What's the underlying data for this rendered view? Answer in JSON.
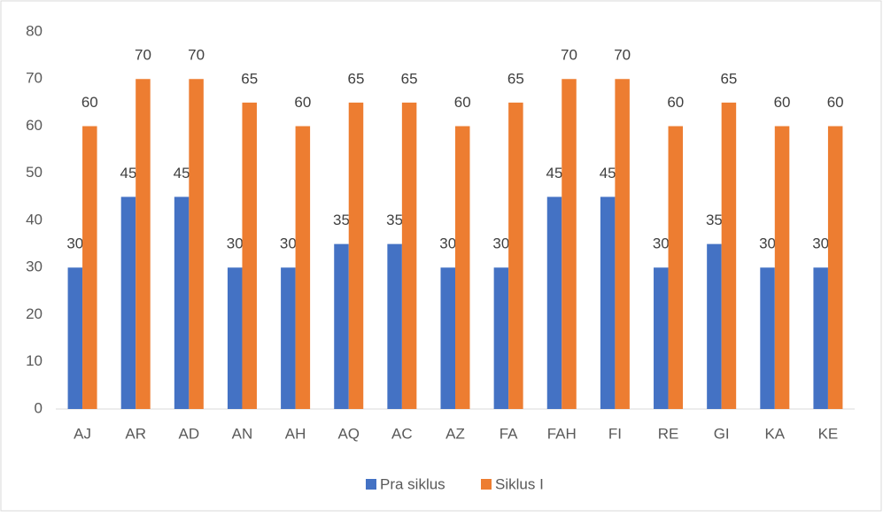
{
  "chart_data": {
    "type": "bar",
    "categories": [
      "AJ",
      "AR",
      "AD",
      "AN",
      "AH",
      "AQ",
      "AC",
      "AZ",
      "FA",
      "FAH",
      "FI",
      "RE",
      "GI",
      "KA",
      "KE"
    ],
    "series": [
      {
        "name": "Pra siklus",
        "color": "#4472c4",
        "values": [
          30,
          45,
          45,
          30,
          30,
          35,
          35,
          30,
          30,
          45,
          45,
          30,
          35,
          30,
          30
        ]
      },
      {
        "name": "Siklus I",
        "color": "#ed7d31",
        "values": [
          60,
          70,
          70,
          65,
          60,
          65,
          65,
          60,
          65,
          70,
          70,
          60,
          65,
          60,
          60
        ]
      }
    ],
    "ylim": [
      0,
      80
    ],
    "yticks": [
      0,
      10,
      20,
      30,
      40,
      50,
      60,
      70,
      80
    ],
    "grid": false,
    "legend": "bottom"
  }
}
